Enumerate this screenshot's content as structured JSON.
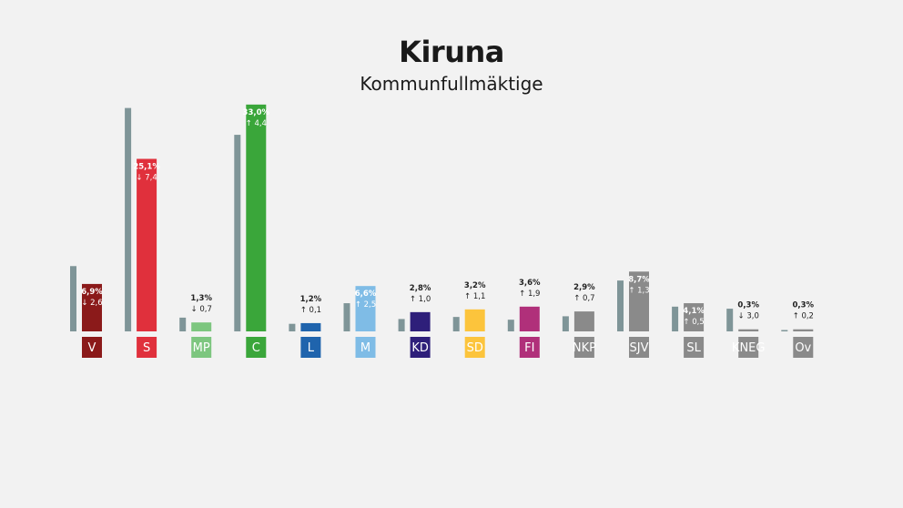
{
  "chart_data": {
    "type": "bar",
    "title": "Kiruna",
    "subtitle": "Kommunfullmäktige",
    "ylim": [
      0,
      35
    ],
    "categories": [
      "V",
      "S",
      "MP",
      "C",
      "L",
      "M",
      "KD",
      "SD",
      "FI",
      "NKP",
      "SJV",
      "SL",
      "KNEG",
      "Ov"
    ],
    "colors": [
      "#8b1a1a",
      "#e0303c",
      "#7dc67f",
      "#3aa63a",
      "#1f64ad",
      "#7fbce6",
      "#2e1f7a",
      "#fcc43c",
      "#b0307a",
      "#8a8a8a",
      "#8a8a8a",
      "#8a8a8a",
      "#8a8a8a",
      "#8a8a8a"
    ],
    "previous_color": "#7f9598",
    "series": [
      {
        "values": [
          9.5,
          32.5,
          2.0,
          28.6,
          1.1,
          4.1,
          1.8,
          2.1,
          1.7,
          2.2,
          7.4,
          3.6,
          3.3,
          0.1
        ]
      },
      {
        "values": [
          6.9,
          25.1,
          1.3,
          33.0,
          1.2,
          6.6,
          2.8,
          3.2,
          3.6,
          2.9,
          8.7,
          4.1,
          0.3,
          0.3
        ]
      }
    ],
    "value_labels": [
      "6,9%",
      "25,1%",
      "1,3%",
      "33,0%",
      "1,2%",
      "6,6%",
      "2,8%",
      "3,2%",
      "3,6%",
      "2,9%",
      "8,7%",
      "4,1%",
      "0,3%",
      "0,3%"
    ],
    "change_labels": [
      "2,6",
      "7,4",
      "0,7",
      "4,4",
      "0,1",
      "2,5",
      "1,0",
      "1,1",
      "1,9",
      "0,7",
      "1,3",
      "0,5",
      "3,0",
      "0,2"
    ],
    "change_direction": [
      "down",
      "down",
      "down",
      "up",
      "up",
      "up",
      "up",
      "up",
      "up",
      "up",
      "up",
      "up",
      "down",
      "up"
    ]
  }
}
